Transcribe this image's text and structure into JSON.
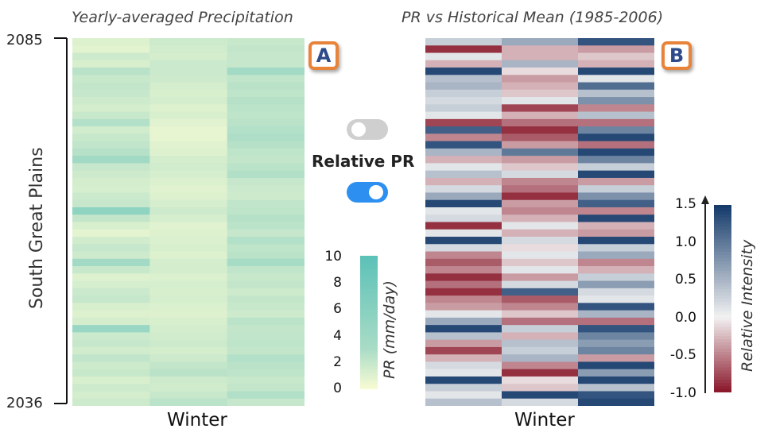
{
  "panel_a": {
    "title": "Yearly-averaged Precipitation",
    "badge": "A",
    "xlabel": "Winter",
    "colorbar_label": "PR (mm/day)",
    "colorbar_ticks": [
      "10",
      "8",
      "6",
      "4",
      "2",
      "0"
    ],
    "colors": {
      "low": "#f7fbd3",
      "high": "#a9dcc6",
      "peak": "#5cc1b8"
    }
  },
  "panel_b": {
    "title": "PR vs Historical Mean (1985-2006)",
    "badge": "B",
    "xlabel": "Winter",
    "colorbar_label": "Relative Intensity",
    "colorbar_ticks": [
      "1.5",
      "1.0",
      "0.5",
      "0.0",
      "-0.5",
      "-1.0"
    ],
    "colors": {
      "low": "#8b1a2d",
      "mid": "#f2f2f2",
      "high": "#163c6c"
    }
  },
  "y_axis": {
    "label": "South Great Plains",
    "top_year": "2085",
    "bottom_year": "2036"
  },
  "toggle_label": "Relative PR",
  "toggles": [
    {
      "state": "off"
    },
    {
      "state": "on"
    }
  ],
  "chart_data": [
    {
      "type": "heatmap",
      "title": "Yearly-averaged Precipitation",
      "xlabel": "Winter",
      "ylabel": "South Great Plains",
      "y_range": [
        2036,
        2085
      ],
      "columns": 3,
      "colorbar": {
        "label": "PR (mm/day)",
        "range": [
          0,
          10
        ]
      },
      "values": [
        [
          1.0,
          1.6,
          1.8
        ],
        [
          0.8,
          1.5,
          2.0
        ],
        [
          1.6,
          1.4,
          1.9
        ],
        [
          1.2,
          1.7,
          1.9
        ],
        [
          2.4,
          1.7,
          3.6
        ],
        [
          1.8,
          1.6,
          2.1
        ],
        [
          2.0,
          1.4,
          2.4
        ],
        [
          1.9,
          1.2,
          2.2
        ],
        [
          1.6,
          1.4,
          2.5
        ],
        [
          1.4,
          1.0,
          2.3
        ],
        [
          1.8,
          1.2,
          2.2
        ],
        [
          2.6,
          0.9,
          2.4
        ],
        [
          1.5,
          0.6,
          2.6
        ],
        [
          1.8,
          0.6,
          2.8
        ],
        [
          2.1,
          0.9,
          2.5
        ],
        [
          2.5,
          1.0,
          2.2
        ],
        [
          3.7,
          1.4,
          2.0
        ],
        [
          1.9,
          1.5,
          2.3
        ],
        [
          1.6,
          1.3,
          2.7
        ],
        [
          1.4,
          1.1,
          1.9
        ],
        [
          1.3,
          0.9,
          1.7
        ],
        [
          1.7,
          1.0,
          1.6
        ],
        [
          1.9,
          1.3,
          2.1
        ],
        [
          5.4,
          1.6,
          2.2
        ],
        [
          2.0,
          1.3,
          2.5
        ],
        [
          1.2,
          0.9,
          2.3
        ],
        [
          0.7,
          1.0,
          1.9
        ],
        [
          1.5,
          1.1,
          2.6
        ],
        [
          1.9,
          1.2,
          2.2
        ],
        [
          1.6,
          1.0,
          2.4
        ],
        [
          3.6,
          1.4,
          3.3
        ],
        [
          1.8,
          1.4,
          2.1
        ],
        [
          1.0,
          1.1,
          1.8
        ],
        [
          1.3,
          1.3,
          2.0
        ],
        [
          1.7,
          1.2,
          1.6
        ],
        [
          1.9,
          1.3,
          2.0
        ],
        [
          1.2,
          1.1,
          1.8
        ],
        [
          1.0,
          1.0,
          1.6
        ],
        [
          1.4,
          1.2,
          2.3
        ],
        [
          4.5,
          1.4,
          2.0
        ],
        [
          1.7,
          1.5,
          2.1
        ],
        [
          1.9,
          1.6,
          2.2
        ],
        [
          1.5,
          1.4,
          2.0
        ],
        [
          2.1,
          1.6,
          2.6
        ],
        [
          1.6,
          2.0,
          2.4
        ],
        [
          1.8,
          2.4,
          2.2
        ],
        [
          1.2,
          1.6,
          1.8
        ],
        [
          1.6,
          1.5,
          2.0
        ],
        [
          1.4,
          1.8,
          2.7
        ],
        [
          1.6,
          2.3,
          1.9
        ]
      ]
    },
    {
      "type": "heatmap",
      "title": "PR vs Historical Mean (1985-2006)",
      "xlabel": "Winter",
      "ylabel": "South Great Plains",
      "y_range": [
        2036,
        2085
      ],
      "columns": 3,
      "colorbar": {
        "label": "Relative Intensity",
        "range": [
          -1.0,
          1.5
        ]
      },
      "values": [
        [
          0.3,
          0.6,
          1.3
        ],
        [
          -0.9,
          -0.3,
          -0.4
        ],
        [
          0.1,
          -0.3,
          -0.2
        ],
        [
          -0.3,
          0.5,
          -0.3
        ],
        [
          1.4,
          -0.1,
          1.4
        ],
        [
          0.4,
          -0.4,
          0.1
        ],
        [
          0.5,
          -0.3,
          1.1
        ],
        [
          0.3,
          -0.2,
          0.4
        ],
        [
          0.2,
          0.1,
          0.8
        ],
        [
          0.3,
          -0.8,
          -0.5
        ],
        [
          0.1,
          -0.3,
          0.4
        ],
        [
          -0.8,
          -0.6,
          -0.6
        ],
        [
          1.2,
          -0.9,
          0.9
        ],
        [
          -0.5,
          -0.7,
          1.4
        ],
        [
          1.3,
          -0.4,
          -0.6
        ],
        [
          0.5,
          1.0,
          1.4
        ],
        [
          -0.3,
          -0.4,
          0.9
        ],
        [
          0.1,
          -0.2,
          0.3
        ],
        [
          0.4,
          0.2,
          1.4
        ],
        [
          -0.3,
          -0.5,
          -0.4
        ],
        [
          0.2,
          -0.6,
          0.3
        ],
        [
          0.6,
          -0.9,
          0.8
        ],
        [
          1.4,
          -0.4,
          1.2
        ],
        [
          0.1,
          -0.5,
          -0.5
        ],
        [
          0.2,
          -0.3,
          1.4
        ],
        [
          -0.9,
          0.1,
          -0.3
        ],
        [
          0.1,
          -0.3,
          -0.4
        ],
        [
          1.4,
          0.2,
          1.4
        ],
        [
          0.2,
          -0.1,
          0.3
        ],
        [
          -0.5,
          0.1,
          0.6
        ],
        [
          -0.7,
          -0.2,
          -0.5
        ],
        [
          -0.5,
          0.1,
          -0.3
        ],
        [
          -0.9,
          -0.4,
          0.3
        ],
        [
          -0.6,
          0.2,
          0.7
        ],
        [
          -0.9,
          1.2,
          0.2
        ],
        [
          -0.5,
          -0.7,
          0.1
        ],
        [
          -0.4,
          -0.5,
          1.3
        ],
        [
          0.1,
          -0.2,
          0.5
        ],
        [
          0.6,
          -0.6,
          -0.6
        ],
        [
          1.4,
          0.3,
          1.3
        ],
        [
          0.4,
          -0.3,
          0.9
        ],
        [
          -0.4,
          0.4,
          0.7
        ],
        [
          -0.8,
          0.3,
          0.9
        ],
        [
          -0.3,
          0.5,
          -0.4
        ],
        [
          0.2,
          -0.5,
          1.4
        ],
        [
          0.1,
          -0.9,
          0.7
        ],
        [
          1.4,
          -0.1,
          1.4
        ],
        [
          0.3,
          -0.2,
          0.4
        ],
        [
          0.1,
          1.4,
          1.3
        ],
        [
          0.4,
          0.2,
          1.4
        ]
      ]
    }
  ]
}
